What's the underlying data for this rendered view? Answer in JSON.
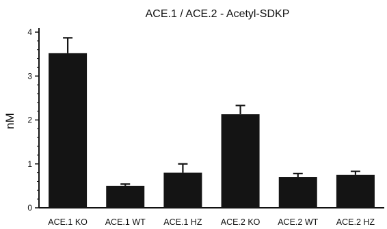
{
  "chart_data": {
    "type": "bar",
    "title": "ACE.1 / ACE.2 - Acetyl-SDKP",
    "xlabel": "",
    "ylabel": "nM",
    "ylim": [
      0,
      4
    ],
    "yticks": [
      0,
      1,
      2,
      3,
      4
    ],
    "categories": [
      "ACE.1 KO",
      "ACE.1 WT",
      "ACE.1 HZ",
      "ACE.2 KO",
      "ACE.2 WT",
      "ACE.2 HZ"
    ],
    "values": [
      3.52,
      0.5,
      0.8,
      2.13,
      0.7,
      0.75
    ],
    "errors": [
      0.35,
      0.04,
      0.2,
      0.2,
      0.08,
      0.08
    ],
    "grid": false,
    "legend": "none",
    "bar_color": "#141414"
  }
}
